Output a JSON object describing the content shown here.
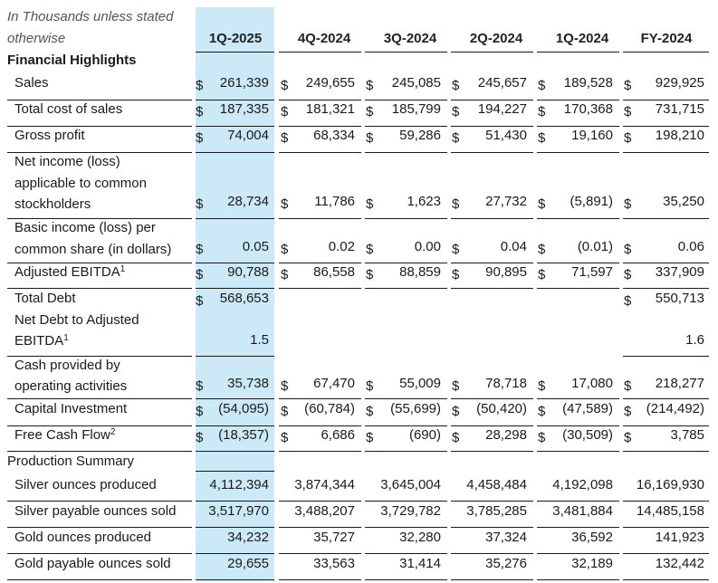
{
  "note_line1": "In Thousands unless stated",
  "note_line2": "otherwise",
  "columns": [
    "1Q-2025",
    "4Q-2024",
    "3Q-2024",
    "2Q-2024",
    "1Q-2024",
    "FY-2024"
  ],
  "currency_symbol": "$",
  "sections": {
    "financial": "Financial Highlights",
    "production": "Production Summary"
  },
  "rows": {
    "sales": {
      "label": "Sales",
      "values": [
        "261,339",
        "249,655",
        "245,085",
        "245,657",
        "189,528",
        "929,925"
      ]
    },
    "cost": {
      "label": "Total cost of sales",
      "values": [
        "187,335",
        "181,321",
        "185,799",
        "194,227",
        "170,368",
        "731,715"
      ]
    },
    "gross": {
      "label": "Gross profit",
      "values": [
        "74,004",
        "68,334",
        "59,286",
        "51,430",
        "19,160",
        "198,210"
      ]
    },
    "netinc": {
      "label_lines": [
        "Net income (loss)",
        "applicable to common",
        "stockholders"
      ],
      "values": [
        "28,734",
        "11,786",
        "1,623",
        "27,732",
        "(5,891)",
        "35,250"
      ]
    },
    "basic": {
      "label_lines": [
        "Basic income (loss) per",
        "common share (in dollars)"
      ],
      "values": [
        "0.05",
        "0.02",
        "0.00",
        "0.04",
        "(0.01)",
        "0.06"
      ]
    },
    "ebitda": {
      "label": "Adjusted EBITDA",
      "footnote": "1",
      "values": [
        "90,788",
        "86,558",
        "88,859",
        "90,895",
        "71,597",
        "337,909"
      ]
    },
    "debt": {
      "label": "Total Debt",
      "values": [
        "568,653",
        "",
        "",
        "",
        "",
        "550,713"
      ]
    },
    "netdebt": {
      "label_lines": [
        "Net Debt to Adjusted",
        "EBITDA"
      ],
      "footnote": "1",
      "values": [
        "1.5",
        "",
        "",
        "",
        "",
        "1.6"
      ]
    },
    "cashops": {
      "label_lines": [
        "Cash provided by",
        "operating activities"
      ],
      "values": [
        "35,738",
        "67,470",
        "55,009",
        "78,718",
        "17,080",
        "218,277"
      ]
    },
    "capex": {
      "label": "Capital Investment",
      "values": [
        "(54,095)",
        "(60,784)",
        "(55,699)",
        "(50,420)",
        "(47,589)",
        "(214,492)"
      ]
    },
    "fcf": {
      "label": "Free Cash Flow",
      "footnote": "2",
      "values": [
        "(18,357)",
        "6,686",
        "(690)",
        "28,298",
        "(30,509)",
        "3,785"
      ]
    },
    "silver_prod": {
      "label": "Silver ounces produced",
      "values": [
        "4,112,394",
        "3,874,344",
        "3,645,004",
        "4,458,484",
        "4,192,098",
        "16,169,930"
      ]
    },
    "silver_sold": {
      "label": "Silver payable ounces sold",
      "values": [
        "3,517,970",
        "3,488,207",
        "3,729,782",
        "3,785,285",
        "3,481,884",
        "14,485,158"
      ]
    },
    "gold_prod": {
      "label": "Gold ounces produced",
      "values": [
        "34,232",
        "35,727",
        "32,280",
        "37,324",
        "36,592",
        "141,923"
      ]
    },
    "gold_sold": {
      "label": "Gold payable ounces sold",
      "values": [
        "29,655",
        "33,563",
        "31,414",
        "35,276",
        "32,189",
        "132,442"
      ]
    }
  }
}
